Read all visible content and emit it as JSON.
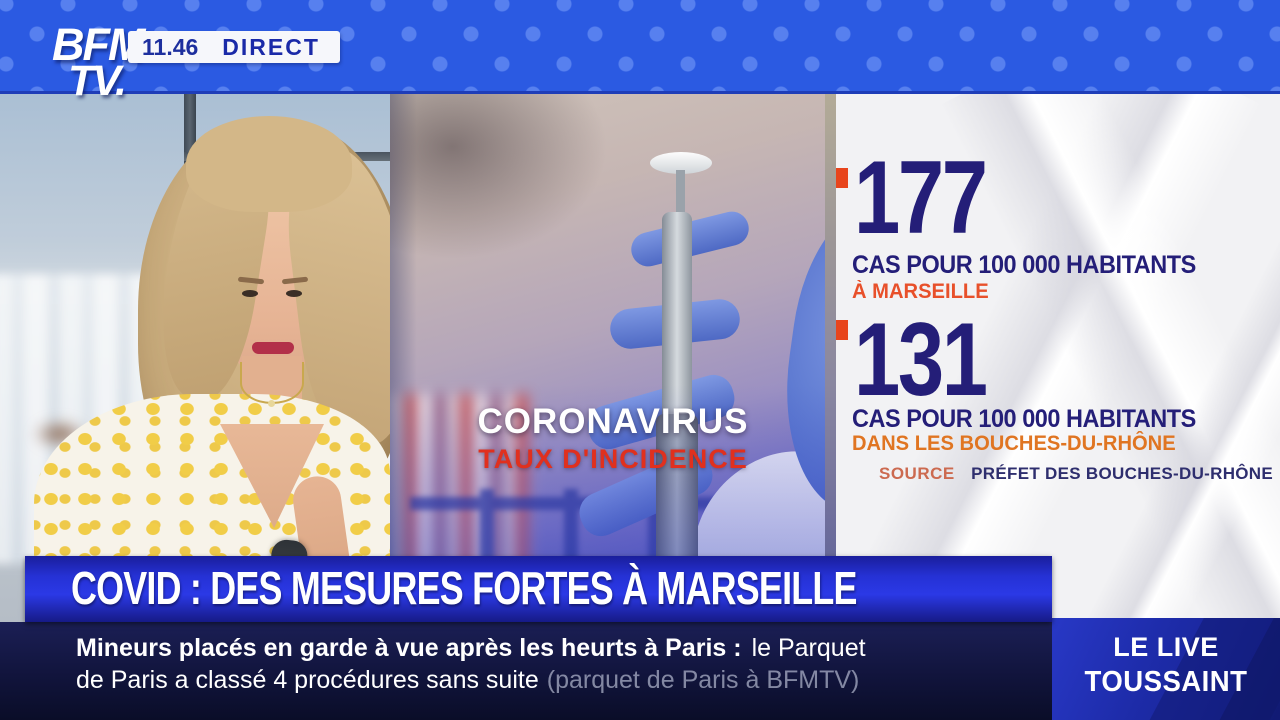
{
  "channel": {
    "name": "BFM TV",
    "logo_top": "BFM",
    "logo_bottom": "TV.",
    "time": "11.46",
    "live_badge": "DIRECT"
  },
  "topic_overlay": {
    "title": "CORONAVIRUS",
    "subtitle": "TAUX D'INCIDENCE"
  },
  "stats_panel": {
    "stats": [
      {
        "value": "177",
        "label": "CAS POUR 100 000 HABITANTS",
        "location": "À MARSEILLE"
      },
      {
        "value": "131",
        "label": "CAS POUR 100 000 HABITANTS",
        "location": "DANS LES BOUCHES-DU-RHÔNE"
      }
    ],
    "source_label": "SOURCE",
    "source_value": "PRÉFET DES BOUCHES-DU-RHÔNE"
  },
  "headline": "COVID : DES MESURES FORTES À MARSEILLE",
  "ticker": {
    "line1_bold": "Mineurs placés en garde à vue après les heurts à Paris :",
    "line1_rest": "le Parquet",
    "line2": "de Paris a classé 4 procédures sans suite",
    "line2_attribution": "(parquet de Paris à BFMTV)"
  },
  "program_badge": {
    "line1": "LE LIVE",
    "line2": "TOUSSAINT"
  },
  "colors": {
    "top_bar_blue": "#2b5ae2",
    "chip_text_navy": "#1d2f9e",
    "stat_navy": "#241e78",
    "bullet_orange": "#e8451c",
    "marseille_orange": "#e8502a",
    "bdr_orange": "#e07522",
    "source_salmon": "#cc6a50",
    "headline_blue": "#2b39e6",
    "ticker_navy": "#11143c",
    "program_blue": "#1d2ba8",
    "subtitle_red": "#e0301e",
    "panel_bg": "#f2f2f4"
  }
}
